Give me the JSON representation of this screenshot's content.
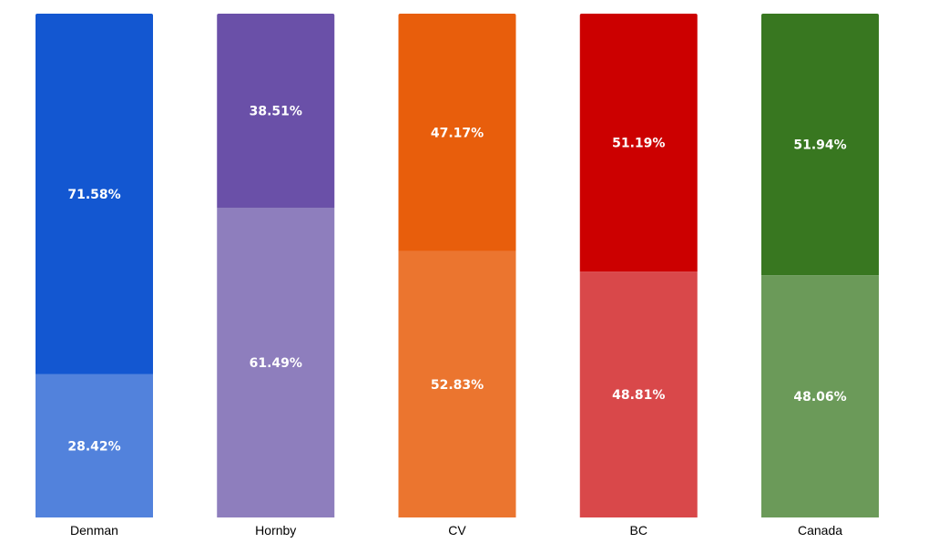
{
  "chart_data": {
    "type": "bar",
    "stacked": true,
    "categories": [
      "Denman",
      "Hornby",
      "CV",
      "BC",
      "Canada"
    ],
    "series": [
      {
        "values": [
          28.42,
          61.49,
          52.83,
          48.81,
          48.06
        ],
        "labels": [
          "28.42%",
          "61.49%",
          "52.83%",
          "48.81%",
          "48.06%"
        ]
      },
      {
        "values": [
          71.58,
          38.51,
          47.17,
          51.19,
          51.94
        ],
        "labels": [
          "71.58%",
          "38.51%",
          "47.17%",
          "51.19%",
          "51.94%"
        ]
      }
    ],
    "colors": {
      "bottom": [
        "#5282DC",
        "#8E7EBD",
        "#EB752F",
        "#D9484A",
        "#6B9A59"
      ],
      "top": [
        "#1357D1",
        "#6A50A8",
        "#E85E0C",
        "#CC0000",
        "#387720"
      ]
    },
    "ylim": [
      0,
      100
    ],
    "grid": false,
    "legend": "none"
  }
}
